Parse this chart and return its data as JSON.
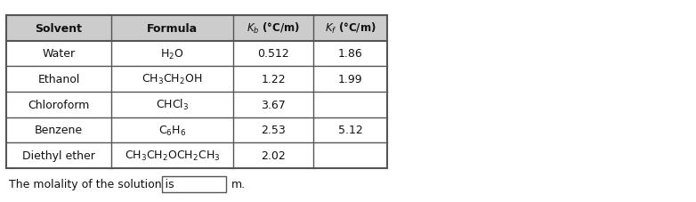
{
  "table": {
    "col_headers": [
      "Solvent",
      "Formula",
      "$K_b$ (°C/m)",
      "$K_f$ (°C/m)"
    ],
    "rows": [
      [
        "Water",
        "H₂O",
        "0.512",
        "1.86"
      ],
      [
        "Ethanol",
        "CH₃CH₂OH",
        "1.22",
        "1.99"
      ],
      [
        "Chloroform",
        "CHCl₃",
        "3.67",
        ""
      ],
      [
        "Benzene",
        "C₆H₆",
        "2.53",
        "5.12"
      ],
      [
        "Diethyl ether",
        "CH₃CH₂OCH₂CH₃",
        "2.02",
        ""
      ]
    ]
  },
  "footer_text": "The molality of the solution is",
  "footer_suffix": "m.",
  "bg_color": "#ffffff",
  "table_border_color": "#555555",
  "header_bg": "#d0d0d0",
  "text_color": "#111111",
  "font_size": 9,
  "header_font_size": 9
}
